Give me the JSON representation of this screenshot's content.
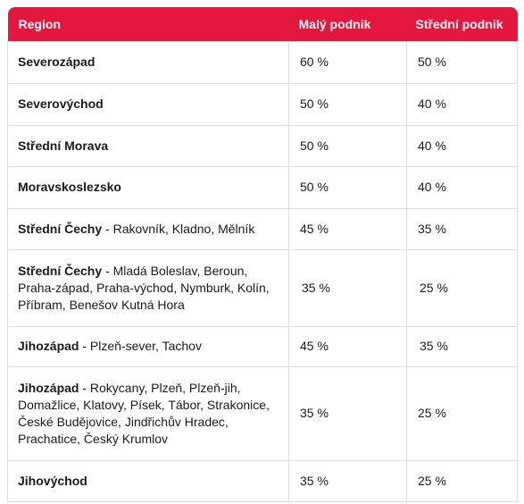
{
  "table": {
    "headers": {
      "region": "Region",
      "small": "Malý podnik",
      "medium": "Střední podnik"
    },
    "rows": [
      {
        "name": "Severozápad",
        "detail": "",
        "small": "60 %",
        "medium": "50 %"
      },
      {
        "name": "Severovýchod",
        "detail": "",
        "small": "50 %",
        "medium": "40 %"
      },
      {
        "name": "Střední Morava",
        "detail": "",
        "small": "50 %",
        "medium": "40 %"
      },
      {
        "name": "Moravskoslezsko",
        "detail": "",
        "small": "50 %",
        "medium": "40 %"
      },
      {
        "name": "Střední Čechy",
        "detail": " - Rakovník, Kladno, Mělník",
        "small": "45 %",
        "medium": "35 %"
      },
      {
        "name": "Střední Čechy",
        "detail": " - Mladá Boleslav, Beroun, Praha-západ, Praha-východ, Nymburk, Kolín, Příbram, Benešov Kutná Hora",
        "small": "35 %",
        "medium": "25 %"
      },
      {
        "name": "Jihozápad",
        "detail": " - Plzeň-sever, Tachov",
        "small": "45 %",
        "medium": "35 %"
      },
      {
        "name": "Jihozápad",
        "detail": " - Rokycany, Plzeň, Plzeň-jih, Domažlice, Klatovy, Písek, Tábor, Strakonice, České Budějovice, Jindřichův Hradec, Prachatice, Český Krumlov",
        "small": "35 %",
        "medium": "25 %"
      },
      {
        "name": "Jihovýchod",
        "detail": "",
        "small": "35 %",
        "medium": "25 %"
      }
    ]
  }
}
